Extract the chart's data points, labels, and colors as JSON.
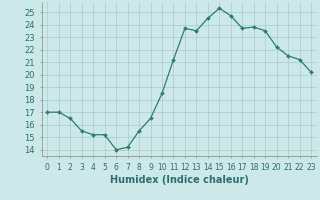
{
  "x": [
    0,
    1,
    2,
    3,
    4,
    5,
    6,
    7,
    8,
    9,
    10,
    11,
    12,
    13,
    14,
    15,
    16,
    17,
    18,
    19,
    20,
    21,
    22,
    23
  ],
  "y": [
    17,
    17,
    16.5,
    15.5,
    15.2,
    15.2,
    14.0,
    14.2,
    15.5,
    16.5,
    18.5,
    21.2,
    23.7,
    23.5,
    24.5,
    25.3,
    24.7,
    23.7,
    23.8,
    23.5,
    22.2,
    21.5,
    21.2,
    20.2
  ],
  "line_color": "#2e7d6e",
  "bg_color": "#cce8e8",
  "grid_color": "#aacccc",
  "xlabel": "Humidex (Indice chaleur)",
  "ylim": [
    13.5,
    25.8
  ],
  "yticks": [
    14,
    15,
    16,
    17,
    18,
    19,
    20,
    21,
    22,
    23,
    24,
    25
  ],
  "xticks": [
    0,
    1,
    2,
    3,
    4,
    5,
    6,
    7,
    8,
    9,
    10,
    11,
    12,
    13,
    14,
    15,
    16,
    17,
    18,
    19,
    20,
    21,
    22,
    23
  ],
  "xtick_labels": [
    "0",
    "1",
    "2",
    "3",
    "4",
    "5",
    "6",
    "7",
    "8",
    "9",
    "10",
    "11",
    "12",
    "13",
    "14",
    "15",
    "16",
    "17",
    "18",
    "19",
    "20",
    "21",
    "22",
    "23"
  ]
}
